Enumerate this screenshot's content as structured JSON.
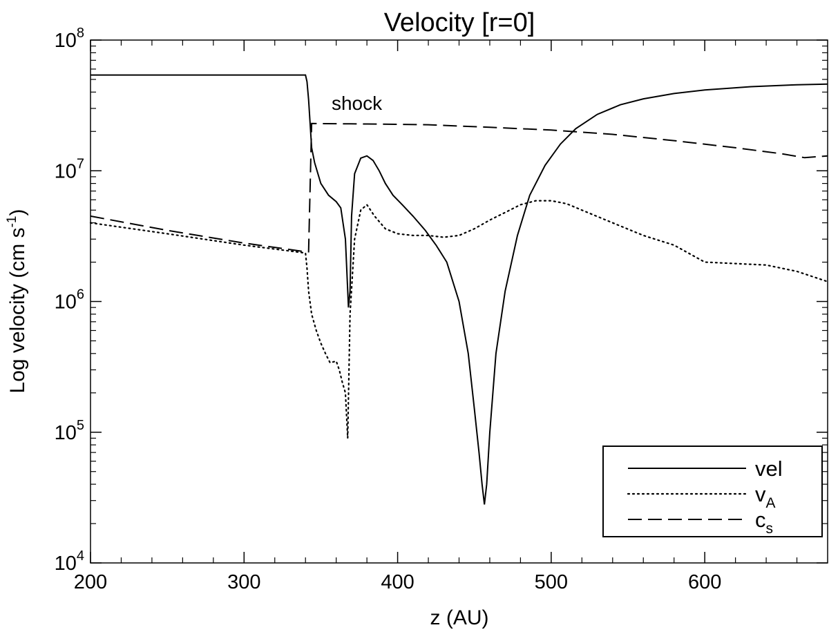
{
  "chart_data": {
    "type": "line",
    "title": "Velocity [r=0]",
    "xlabel": "z (AU)",
    "ylabel_main": "Log velocity (cm s",
    "ylabel_sup": "-1",
    "ylabel_close": ")",
    "xlim": [
      200,
      680
    ],
    "ylim": [
      10000,
      100000000
    ],
    "yscale": "log",
    "x_ticks": [
      200,
      300,
      400,
      500,
      600
    ],
    "x_tick_labels": [
      "200",
      "300",
      "400",
      "500",
      "600"
    ],
    "y_ticks": [
      {
        "value": 10000,
        "base": "10",
        "exp": "4"
      },
      {
        "value": 100000,
        "base": "10",
        "exp": "5"
      },
      {
        "value": 1000000,
        "base": "10",
        "exp": "6"
      },
      {
        "value": 10000000,
        "base": "10",
        "exp": "7"
      },
      {
        "value": 100000000,
        "base": "10",
        "exp": "8"
      }
    ],
    "annotations": [
      {
        "text": "shock",
        "x": 357,
        "y": 33000000
      }
    ],
    "legend": {
      "position": "bottom-right",
      "entries": [
        {
          "series": "vel",
          "text": "vel",
          "sub": ""
        },
        {
          "series": "vA",
          "text": "v",
          "sub": "A"
        },
        {
          "series": "cs",
          "text": "c",
          "sub": "s"
        }
      ]
    },
    "series": [
      {
        "name": "vel",
        "style": "solid",
        "x": [
          200,
          250,
          300,
          340,
          341,
          342,
          343,
          344,
          346,
          350,
          355,
          360,
          363,
          366,
          368,
          369,
          370,
          372,
          376,
          380,
          384,
          388,
          392,
          397,
          403,
          410,
          418,
          425,
          432,
          440,
          446,
          450,
          453,
          455,
          456.5,
          458,
          460,
          464,
          470,
          478,
          486,
          496,
          506,
          516,
          530,
          545,
          560,
          580,
          600,
          630,
          660,
          680
        ],
        "y": [
          54000000,
          54000000,
          54000000,
          54000000,
          48000000,
          35000000,
          23000000,
          15000000,
          11500000,
          8000000,
          6500000,
          5800000,
          5200000,
          3000000,
          900000,
          1200000,
          4500000,
          9500000,
          12500000,
          13000000,
          12000000,
          10000000,
          8000000,
          6500000,
          5500000,
          4500000,
          3500000,
          2700000,
          2000000,
          1000000,
          400000,
          150000,
          70000,
          40000,
          28000,
          40000,
          100000,
          400000,
          1200000,
          3200000,
          6500000,
          11000000,
          16000000,
          21000000,
          27000000,
          32000000,
          35500000,
          39000000,
          41500000,
          44000000,
          45500000,
          46000000
        ]
      },
      {
        "name": "vA",
        "style": "dotted",
        "x": [
          200,
          250,
          300,
          340,
          341,
          342,
          344,
          347,
          350,
          353,
          356,
          360,
          362,
          364,
          366,
          367.5,
          369,
          372,
          376,
          380,
          385,
          392,
          400,
          410,
          420,
          430,
          440,
          450,
          460,
          470,
          480,
          490,
          500,
          510,
          520,
          540,
          560,
          580,
          600,
          620,
          640,
          660,
          680
        ],
        "y": [
          4000000,
          3300000,
          2700000,
          2350000,
          1800000,
          1200000,
          800000,
          600000,
          480000,
          400000,
          340000,
          350000,
          300000,
          240000,
          200000,
          90000,
          800000,
          3000000,
          5000000,
          5500000,
          4500000,
          3600000,
          3300000,
          3200000,
          3200000,
          3100000,
          3200000,
          3600000,
          4200000,
          4800000,
          5500000,
          5900000,
          5900000,
          5600000,
          5000000,
          4000000,
          3200000,
          2700000,
          2000000,
          1950000,
          1900000,
          1700000,
          1420000
        ]
      },
      {
        "name": "cs",
        "style": "dashed",
        "x": [
          200,
          250,
          300,
          340,
          342,
          344,
          380,
          420,
          460,
          500,
          540,
          580,
          620,
          650,
          665,
          680
        ],
        "y": [
          4500000,
          3500000,
          2800000,
          2400000,
          2400000,
          23000000,
          22800000,
          22500000,
          21500000,
          20500000,
          19000000,
          17000000,
          15000000,
          13500000,
          12600000,
          13000000
        ]
      }
    ]
  }
}
